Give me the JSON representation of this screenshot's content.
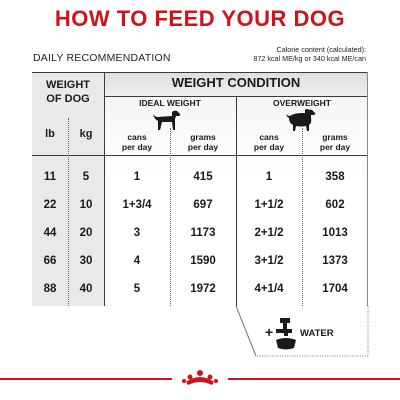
{
  "title": "HOW TO FEED YOUR DOG",
  "daily_recommendation": "DAILY RECOMMENDATION",
  "calorie": {
    "line1": "Calorie content (calculated):",
    "line2": "872 kcal ME/kg or 340 kcal ME/can"
  },
  "table": {
    "weight_of_dog_line1": "WEIGHT",
    "weight_of_dog_line2": "OF DOG",
    "weight_condition": "WEIGHT CONDITION",
    "ideal_weight": "IDEAL WEIGHT",
    "overweight": "OVERWEIGHT",
    "lb": "lb",
    "kg": "kg",
    "cans_line1": "cans",
    "cans_line2": "per day",
    "grams_line1": "grams",
    "grams_line2": "per day",
    "rows": [
      {
        "lb": "11",
        "kg": "5",
        "ideal_cans": "1",
        "ideal_grams": "415",
        "over_cans": "1",
        "over_grams": "358"
      },
      {
        "lb": "22",
        "kg": "10",
        "ideal_cans": "1+3/4",
        "ideal_grams": "697",
        "over_cans": "1+1/2",
        "over_grams": "602"
      },
      {
        "lb": "44",
        "kg": "20",
        "ideal_cans": "3",
        "ideal_grams": "1173",
        "over_cans": "2+1/2",
        "over_grams": "1013"
      },
      {
        "lb": "66",
        "kg": "30",
        "ideal_cans": "4",
        "ideal_grams": "1590",
        "over_cans": "3+1/2",
        "over_grams": "1373"
      },
      {
        "lb": "88",
        "kg": "40",
        "ideal_cans": "5",
        "ideal_grams": "1972",
        "over_cans": "4+1/4",
        "over_grams": "1704"
      }
    ]
  },
  "water": {
    "plus": "+",
    "label": "WATER"
  },
  "colors": {
    "brand_red": "#d0121c",
    "text": "#1a1a1a"
  },
  "icons": [
    "ideal-dog-icon",
    "overweight-dog-icon",
    "water-tap-icon",
    "bowl-icon",
    "royal-canin-crown-logo"
  ]
}
